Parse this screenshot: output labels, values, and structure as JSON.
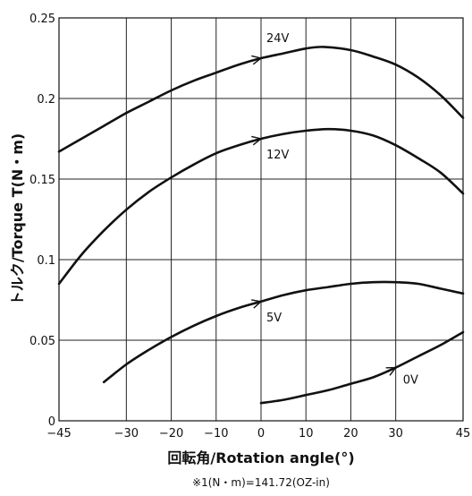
{
  "chart_data": {
    "type": "line",
    "xlabel": "回転角/Rotation angle(°)",
    "ylabel": "トルク/Torque T(N・m)",
    "note": "※1(N・m)=141.72(OZ-in)",
    "xlim": [
      -45,
      45
    ],
    "ylim": [
      0,
      0.25
    ],
    "xticks": [
      -45,
      -30,
      -20,
      -10,
      0,
      10,
      20,
      30,
      45
    ],
    "xtick_labels": [
      "−45",
      "−30",
      "−20",
      "−10",
      "0",
      "10",
      "20",
      "30",
      "45"
    ],
    "yticks": [
      0,
      0.05,
      0.1,
      0.15,
      0.2,
      0.25
    ],
    "ytick_labels": [
      "0",
      "0.05",
      "0.1",
      "0.15",
      "0.2",
      "0.25"
    ],
    "grid": true,
    "series": [
      {
        "name": "24V",
        "x": [
          -45,
          -40,
          -35,
          -30,
          -25,
          -20,
          -15,
          -10,
          -5,
          0,
          5,
          10,
          14,
          20,
          25,
          30,
          35,
          40,
          45
        ],
        "y": [
          0.167,
          0.175,
          0.183,
          0.191,
          0.198,
          0.205,
          0.211,
          0.216,
          0.221,
          0.225,
          0.228,
          0.231,
          0.232,
          0.23,
          0.226,
          0.221,
          0.213,
          0.202,
          0.188
        ]
      },
      {
        "name": "12V",
        "x": [
          -45,
          -40,
          -35,
          -30,
          -25,
          -20,
          -15,
          -10,
          -5,
          0,
          5,
          10,
          15,
          20,
          25,
          30,
          35,
          40,
          45
        ],
        "y": [
          0.085,
          0.103,
          0.118,
          0.131,
          0.142,
          0.151,
          0.159,
          0.166,
          0.171,
          0.175,
          0.178,
          0.18,
          0.181,
          0.18,
          0.177,
          0.171,
          0.163,
          0.154,
          0.141
        ]
      },
      {
        "name": "5V",
        "x": [
          -35,
          -30,
          -25,
          -20,
          -15,
          -10,
          -5,
          0,
          5,
          10,
          15,
          20,
          25,
          30,
          35,
          40,
          45
        ],
        "y": [
          0.024,
          0.035,
          0.044,
          0.052,
          0.059,
          0.065,
          0.07,
          0.074,
          0.078,
          0.081,
          0.083,
          0.085,
          0.086,
          0.086,
          0.085,
          0.082,
          0.079
        ]
      },
      {
        "name": "0V",
        "x": [
          0,
          5,
          10,
          15,
          20,
          25,
          30,
          35,
          40,
          45
        ],
        "y": [
          0.011,
          0.013,
          0.016,
          0.019,
          0.023,
          0.027,
          0.033,
          0.04,
          0.047,
          0.055
        ]
      }
    ],
    "annotations": [
      {
        "series": "24V",
        "label": "24V",
        "at_x": 0
      },
      {
        "series": "12V",
        "label": "12V",
        "at_x": 0
      },
      {
        "series": "5V",
        "label": "5V",
        "at_x": 0
      },
      {
        "series": "0V",
        "label": "0V",
        "at_x": 30
      }
    ]
  }
}
